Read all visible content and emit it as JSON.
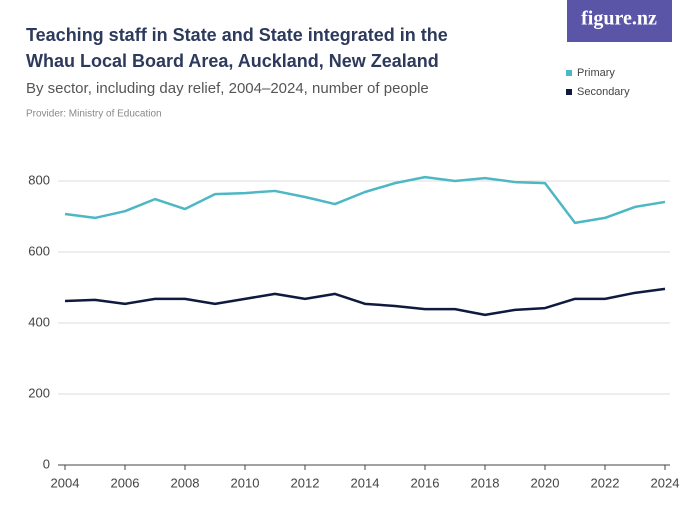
{
  "logo": "figure.nz",
  "chart_data": {
    "type": "line",
    "title": "Teaching staff in State and State integrated in the Whau Local Board Area, Auckland, New Zealand",
    "subtitle": "By sector, including day relief, 2004–2024, number of people",
    "provider": "Provider: Ministry of Education",
    "x": [
      2004,
      2005,
      2006,
      2007,
      2008,
      2009,
      2010,
      2011,
      2012,
      2013,
      2014,
      2015,
      2016,
      2017,
      2018,
      2019,
      2020,
      2021,
      2022,
      2023,
      2024
    ],
    "series": [
      {
        "name": "Primary",
        "color": "#4db8c4",
        "values": [
          707,
          696,
          715,
          749,
          721,
          763,
          766,
          772,
          755,
          735,
          769,
          794,
          811,
          800,
          808,
          797,
          794,
          682,
          696,
          727,
          741
        ]
      },
      {
        "name": "Secondary",
        "color": "#0f1a3e",
        "values": [
          462,
          465,
          454,
          468,
          468,
          454,
          468,
          482,
          468,
          482,
          454,
          448,
          439,
          439,
          423,
          437,
          442,
          468,
          468,
          485,
          496
        ]
      }
    ],
    "xlim": [
      2004,
      2024
    ],
    "xticks": [
      2004,
      2006,
      2008,
      2010,
      2012,
      2014,
      2016,
      2018,
      2020,
      2022,
      2024
    ],
    "ylim": [
      0,
      800
    ],
    "yticks": [
      0,
      200,
      400,
      600,
      800
    ],
    "grid": true,
    "legend": "top-right"
  }
}
